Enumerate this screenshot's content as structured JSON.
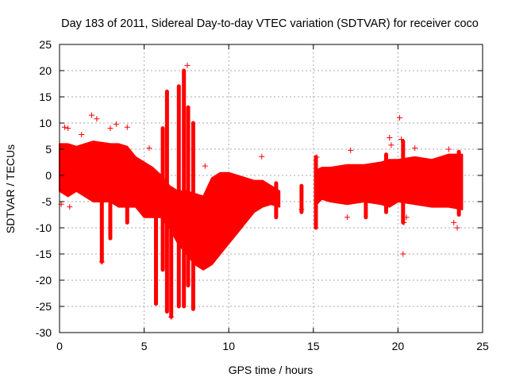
{
  "chart_data": {
    "type": "scatter",
    "title": "Day 183 of 2011, Sidereal Day-to-day VTEC variation (SDTVAR) for receiver coco",
    "xlabel": "GPS time / hours",
    "ylabel": "SDTVAR / TECUs",
    "xlim": [
      0,
      25
    ],
    "ylim": [
      -30,
      25
    ],
    "xticks": [
      0,
      5,
      10,
      15,
      20,
      25
    ],
    "yticks": [
      -30,
      -25,
      -20,
      -15,
      -10,
      -5,
      0,
      5,
      10,
      15,
      20,
      25
    ],
    "grid": true,
    "marker": "+",
    "series_color": "#ff0000",
    "band_segments": [
      {
        "name": "segment-1",
        "x": [
          0.0,
          0.5,
          1.0,
          2.0,
          3.0,
          3.5,
          4.0,
          4.5,
          5.0,
          5.5,
          6.0,
          6.5,
          7.0,
          7.5,
          8.0,
          8.5,
          9.0,
          9.5,
          10.0,
          10.5,
          11.0,
          11.5,
          12.0,
          12.5,
          13.0
        ],
        "top": [
          6.0,
          6.0,
          5.5,
          6.5,
          6.0,
          6.0,
          5.5,
          3.5,
          2.5,
          1.5,
          0.0,
          -2.0,
          -3.0,
          -3.0,
          -3.5,
          -4.0,
          -0.5,
          0.5,
          0.5,
          0.0,
          -0.5,
          -1.0,
          -1.0,
          -2.0,
          -3.0
        ],
        "bot": [
          -3.0,
          -4.0,
          -3.0,
          -5.0,
          -5.0,
          -6.0,
          -6.0,
          -6.0,
          -8.0,
          -8.0,
          -8.0,
          -10.0,
          -13.0,
          -15.0,
          -17.0,
          -18.0,
          -17.0,
          -15.0,
          -13.0,
          -11.0,
          -9.0,
          -7.0,
          -6.0,
          -5.5,
          -6.0
        ]
      },
      {
        "name": "segment-2",
        "x": [
          15.2,
          15.5,
          16.0,
          17.0,
          18.0,
          19.0,
          19.5,
          20.0,
          21.0,
          22.0,
          23.0,
          23.8
        ],
        "top": [
          1.0,
          1.5,
          1.5,
          2.0,
          2.0,
          2.5,
          3.0,
          3.0,
          3.5,
          3.0,
          4.0,
          4.0
        ],
        "bot": [
          -5.5,
          -4.5,
          -5.0,
          -5.5,
          -5.0,
          -5.5,
          -6.0,
          -5.0,
          -5.5,
          -6.0,
          -6.0,
          -6.5
        ]
      }
    ],
    "spikes": [
      {
        "x": 2.5,
        "low": -16.5,
        "high": 2.0
      },
      {
        "x": 3.0,
        "low": -12.0,
        "high": 2.0
      },
      {
        "x": 4.0,
        "low": -9.0,
        "high": 3.0
      },
      {
        "x": 5.7,
        "low": -24.5,
        "high": -6.0
      },
      {
        "x": 6.1,
        "low": -18.0,
        "high": 9.0
      },
      {
        "x": 6.35,
        "low": -26.0,
        "high": 16.0
      },
      {
        "x": 6.6,
        "low": -27.0,
        "high": -5.0
      },
      {
        "x": 7.05,
        "low": -25.0,
        "high": 17.0
      },
      {
        "x": 7.35,
        "low": -25.0,
        "high": 20.0
      },
      {
        "x": 7.6,
        "low": -21.0,
        "high": 13.0
      },
      {
        "x": 7.9,
        "low": -25.5,
        "high": 10.0
      },
      {
        "x": 12.8,
        "low": -8.0,
        "high": -1.5
      },
      {
        "x": 14.3,
        "low": -7.0,
        "high": -2.0
      },
      {
        "x": 15.15,
        "low": -10.0,
        "high": 3.5
      },
      {
        "x": 18.1,
        "low": -8.0,
        "high": 1.5
      },
      {
        "x": 19.3,
        "low": -7.0,
        "high": 4.0
      },
      {
        "x": 20.3,
        "low": -9.0,
        "high": 6.5
      },
      {
        "x": 23.6,
        "low": -7.5,
        "high": 4.5
      }
    ],
    "outliers": [
      {
        "x": 0.3,
        "y": 9.2
      },
      {
        "x": 0.5,
        "y": 9.0
      },
      {
        "x": 1.3,
        "y": 7.8
      },
      {
        "x": 1.9,
        "y": 11.5
      },
      {
        "x": 2.2,
        "y": 10.8
      },
      {
        "x": 3.0,
        "y": 9.0
      },
      {
        "x": 3.35,
        "y": 9.8
      },
      {
        "x": 4.0,
        "y": 9.2
      },
      {
        "x": 5.3,
        "y": 5.2
      },
      {
        "x": 7.55,
        "y": 21.0
      },
      {
        "x": 8.6,
        "y": 1.8
      },
      {
        "x": 11.95,
        "y": 3.6
      },
      {
        "x": 15.2,
        "y": 3.5
      },
      {
        "x": 17.2,
        "y": 4.8
      },
      {
        "x": 19.5,
        "y": 7.2
      },
      {
        "x": 19.6,
        "y": 5.8
      },
      {
        "x": 20.1,
        "y": 11.0
      },
      {
        "x": 20.2,
        "y": 6.9
      },
      {
        "x": 20.3,
        "y": -15.0
      },
      {
        "x": 20.35,
        "y": -9.0
      },
      {
        "x": 20.5,
        "y": -8.0
      },
      {
        "x": 21.0,
        "y": 5.2
      },
      {
        "x": 23.0,
        "y": 5.0
      },
      {
        "x": 23.3,
        "y": -9.0
      },
      {
        "x": 23.5,
        "y": -10.0
      },
      {
        "x": 0.1,
        "y": -5.5
      },
      {
        "x": 0.6,
        "y": -6.0
      },
      {
        "x": 2.5,
        "y": -16.5
      },
      {
        "x": 6.6,
        "y": -27.0
      },
      {
        "x": 14.3,
        "y": -6.5
      },
      {
        "x": 17.0,
        "y": -8.0
      },
      {
        "x": 16.1,
        "y": -4.5
      }
    ]
  }
}
